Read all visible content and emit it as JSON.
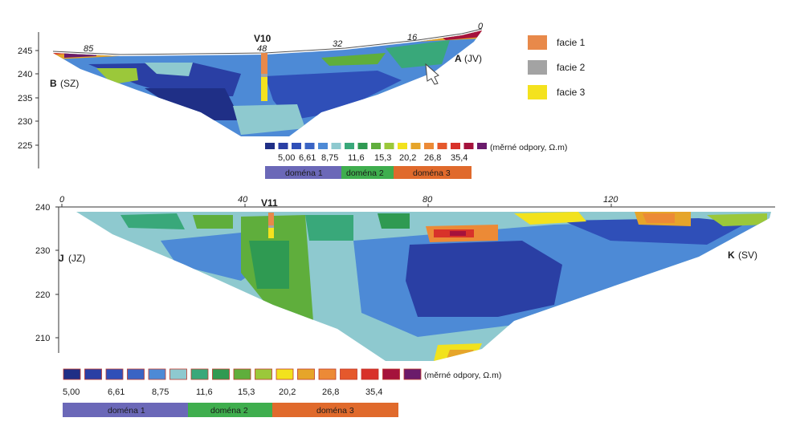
{
  "legend_facie": {
    "items": [
      {
        "label": "facie 1",
        "color": "#e8894a"
      },
      {
        "label": "facie 2",
        "color": "#a3a3a3"
      },
      {
        "label": "facie 3",
        "color": "#f4e21e"
      }
    ]
  },
  "scale_colors": [
    "#1f2f86",
    "#2a3fa4",
    "#2f4fb8",
    "#3a64c4",
    "#4d8ad6",
    "#8ec9cf",
    "#39a87a",
    "#2f9a52",
    "#5fae3c",
    "#9bc83a",
    "#f2e21d",
    "#e6a52a",
    "#ec8a36",
    "#e5582c",
    "#d8322a",
    "#a5123c",
    "#6a1b6b"
  ],
  "profile1": {
    "title": "V10",
    "left_label_bold": "B",
    "left_label": "(SZ)",
    "right_label_bold": "A",
    "right_label": "(JV)",
    "distance_labels": [
      "85",
      "48",
      "32",
      "16",
      "0"
    ],
    "y_ticks": [
      "245",
      "240",
      "235",
      "230",
      "225"
    ],
    "scale_values": [
      "5,00",
      "6,61",
      "8,75",
      "11,6",
      "15,3",
      "20,2",
      "26,8",
      "35,4"
    ],
    "scale_unit": "(měrné odpory, Ω.m)",
    "domains": [
      {
        "label": "doména 1",
        "color": "#6b68b8"
      },
      {
        "label": "doména 2",
        "color": "#3fae4e"
      },
      {
        "label": "doména 3",
        "color": "#e06a2c"
      }
    ]
  },
  "profile2": {
    "title": "V11",
    "left_label_bold": "J",
    "left_label": "(JZ)",
    "right_label_bold": "K",
    "right_label": "(SV)",
    "distance_labels": [
      "0",
      "40",
      "80",
      "120"
    ],
    "y_ticks": [
      "240",
      "230",
      "220",
      "210"
    ],
    "scale_values": [
      "5,00",
      "6,61",
      "8,75",
      "11,6",
      "15,3",
      "20,2",
      "26,8",
      "35,4"
    ],
    "scale_unit": "(měrné odpory, Ω.m)",
    "domains": [
      {
        "label": "doména 1",
        "color": "#6b68b8"
      },
      {
        "label": "doména 2",
        "color": "#3fae4e"
      },
      {
        "label": "doména 3",
        "color": "#e06a2c"
      }
    ]
  }
}
